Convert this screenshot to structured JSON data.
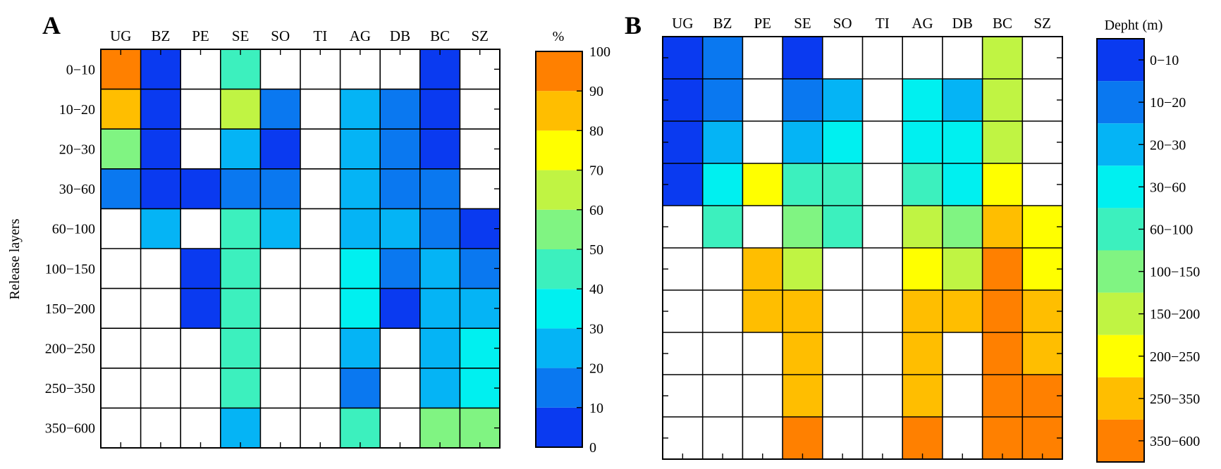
{
  "chart_data": [
    {
      "type": "heatmap",
      "panel": "A",
      "title": "",
      "xlabel": "",
      "ylabel": "Release layers",
      "columns": [
        "UG",
        "BZ",
        "PE",
        "SE",
        "SO",
        "TI",
        "AG",
        "DB",
        "BC",
        "SZ"
      ],
      "rows": [
        "0−10",
        "10−20",
        "20−30",
        "30−60",
        "60−100",
        "100−150",
        "150−200",
        "200−250",
        "250−350",
        "350−600"
      ],
      "colorbar": {
        "title": "%",
        "ticks": [
          "0",
          "10",
          "20",
          "30",
          "40",
          "50",
          "60",
          "70",
          "80",
          "90",
          "100"
        ],
        "colors": [
          "#0a3af0",
          "#0a78f0",
          "#05b4f5",
          "#00f0f0",
          "#3cf0be",
          "#80f482",
          "#c0f443",
          "#ffff00",
          "#ffbe00",
          "#ff8000"
        ]
      },
      "values": [
        [
          95,
          5,
          null,
          45,
          null,
          null,
          null,
          null,
          5,
          null
        ],
        [
          85,
          5,
          null,
          65,
          15,
          null,
          25,
          15,
          5,
          null
        ],
        [
          55,
          5,
          null,
          25,
          5,
          null,
          25,
          15,
          5,
          null
        ],
        [
          15,
          5,
          5,
          15,
          15,
          null,
          25,
          15,
          15,
          null
        ],
        [
          null,
          25,
          null,
          45,
          25,
          null,
          25,
          25,
          15,
          5
        ],
        [
          null,
          null,
          5,
          45,
          null,
          null,
          35,
          15,
          25,
          15
        ],
        [
          null,
          null,
          5,
          45,
          null,
          null,
          35,
          5,
          25,
          25
        ],
        [
          null,
          null,
          null,
          45,
          null,
          null,
          25,
          null,
          25,
          35
        ],
        [
          null,
          null,
          null,
          45,
          null,
          null,
          15,
          null,
          25,
          35
        ],
        [
          null,
          null,
          null,
          25,
          null,
          null,
          45,
          null,
          55,
          55
        ]
      ]
    },
    {
      "type": "heatmap",
      "panel": "B",
      "title": "",
      "xlabel": "",
      "ylabel": "",
      "columns": [
        "UG",
        "BZ",
        "PE",
        "SE",
        "SO",
        "TI",
        "AG",
        "DB",
        "BC",
        "SZ"
      ],
      "rows": 10,
      "colorbar": {
        "title": "Depht (m)",
        "ticks": [
          "0−10",
          "10−20",
          "20−30",
          "30−60",
          "60−100",
          "100−150",
          "150−200",
          "200−250",
          "250−350",
          "350−600"
        ],
        "colors": [
          "#0a3af0",
          "#0a78f0",
          "#05b4f5",
          "#00f0f0",
          "#3cf0be",
          "#80f482",
          "#c0f443",
          "#ffff00",
          "#ffbe00",
          "#ff8000"
        ]
      },
      "values": [
        [
          0,
          1,
          null,
          0,
          null,
          null,
          null,
          null,
          6,
          null
        ],
        [
          0,
          1,
          null,
          1,
          2,
          null,
          3,
          2,
          6,
          null
        ],
        [
          0,
          2,
          null,
          2,
          3,
          null,
          3,
          3,
          6,
          null
        ],
        [
          0,
          3,
          7,
          4,
          4,
          null,
          4,
          3,
          7,
          null
        ],
        [
          null,
          4,
          null,
          5,
          4,
          null,
          6,
          5,
          8,
          7
        ],
        [
          null,
          null,
          8,
          6,
          null,
          null,
          7,
          6,
          9,
          7
        ],
        [
          null,
          null,
          8,
          8,
          null,
          null,
          8,
          8,
          9,
          8
        ],
        [
          null,
          null,
          null,
          8,
          null,
          null,
          8,
          null,
          9,
          8
        ],
        [
          null,
          null,
          null,
          8,
          null,
          null,
          8,
          null,
          9,
          9
        ],
        [
          null,
          null,
          null,
          9,
          null,
          null,
          9,
          null,
          9,
          9
        ]
      ]
    }
  ]
}
